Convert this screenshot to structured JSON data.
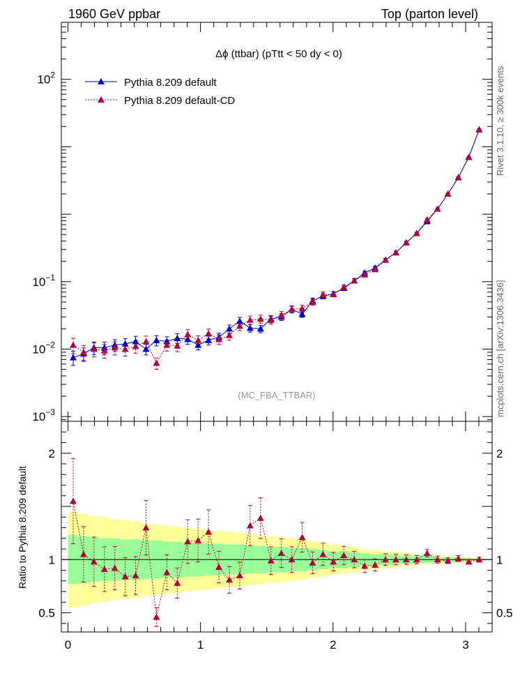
{
  "header": {
    "left": "1960 GeV ppbar",
    "right": "Top (parton level)"
  },
  "side_labels": {
    "rivet": "Rivet 3.1.10, ≥ 300k events",
    "mcplots": "mcplots.cern.ch [arXiv:1306.3436]"
  },
  "main_title": "Δϕ (ttbar) (pTtt < 50 dy < 0)",
  "analysis_tag": "(MC_FBA_TTBAR)",
  "ratio_ylabel": "Ratio to Pythia 8.209 default",
  "colors": {
    "default": "#0000cc",
    "cd": "#b0003c",
    "band_inner": "#99ff99",
    "band_outer": "#ffff99"
  },
  "chart_data": {
    "type": "line",
    "xlim": [
      -0.05,
      3.2
    ],
    "main_ylim": [
      0.00085,
      700
    ],
    "main_yscale": "log",
    "ratio_ylim": [
      0.32,
      2.3
    ],
    "x_ticks": [
      "0",
      "1",
      "2",
      "3"
    ],
    "main_y_ticks": [
      "10^-3",
      "10^-2",
      "10^-1",
      "1",
      "10",
      "10^2"
    ],
    "ratio_y_ticks": [
      "0.5",
      "1",
      "2"
    ],
    "legend": "top-left",
    "x": [
      0.0393,
      0.1178,
      0.1963,
      0.2749,
      0.3534,
      0.432,
      0.5105,
      0.589,
      0.6676,
      0.7461,
      0.8247,
      0.9032,
      0.9817,
      1.0603,
      1.1388,
      1.2174,
      1.2959,
      1.3744,
      1.453,
      1.5315,
      1.6101,
      1.6886,
      1.7671,
      1.8457,
      1.9242,
      2.0028,
      2.0813,
      2.1598,
      2.2384,
      2.3169,
      2.3955,
      2.474,
      2.5525,
      2.6311,
      2.7096,
      2.7882,
      2.8667,
      2.9452,
      3.0238,
      3.1023
    ],
    "series": [
      {
        "name": "Pythia 8.209 default",
        "marker": "triangle",
        "values": [
          0.0075,
          0.0085,
          0.0105,
          0.0105,
          0.0115,
          0.012,
          0.013,
          0.01,
          0.0135,
          0.013,
          0.0145,
          0.014,
          0.0115,
          0.0135,
          0.015,
          0.02,
          0.026,
          0.0205,
          0.02,
          0.028,
          0.03,
          0.039,
          0.033,
          0.052,
          0.061,
          0.066,
          0.08,
          0.103,
          0.135,
          0.16,
          0.21,
          0.27,
          0.38,
          0.52,
          0.78,
          1.2,
          2.0,
          3.5,
          7.0,
          18.0
        ]
      },
      {
        "name": "Pythia 8.209 default-CD",
        "marker": "triangle",
        "values": [
          0.0115,
          0.009,
          0.01,
          0.0095,
          0.0105,
          0.01,
          0.011,
          0.013,
          0.0062,
          0.0115,
          0.0112,
          0.0165,
          0.0135,
          0.017,
          0.014,
          0.016,
          0.022,
          0.027,
          0.028,
          0.027,
          0.032,
          0.039,
          0.04,
          0.05,
          0.064,
          0.065,
          0.083,
          0.103,
          0.127,
          0.152,
          0.21,
          0.27,
          0.38,
          0.52,
          0.83,
          1.2,
          2.0,
          3.52,
          7.0,
          18.0
        ]
      }
    ],
    "ratio_values": [
      1.55,
      1.05,
      0.98,
      0.91,
      0.92,
      0.84,
      0.85,
      1.3,
      0.46,
      0.88,
      0.78,
      1.17,
      1.18,
      1.26,
      0.93,
      0.81,
      0.85,
      1.32,
      1.39,
      0.99,
      1.06,
      1.0,
      1.21,
      0.97,
      1.05,
      0.98,
      1.04,
      1.0,
      0.94,
      0.95,
      1.0,
      1.0,
      1.0,
      1.0,
      1.06,
      1.0,
      0.99,
      1.01,
      0.98,
      1.0
    ],
    "band_inner": [
      0.23,
      0.22,
      0.21,
      0.2,
      0.2,
      0.19,
      0.19,
      0.18,
      0.18,
      0.17,
      0.17,
      0.16,
      0.16,
      0.15,
      0.15,
      0.14,
      0.14,
      0.13,
      0.13,
      0.12,
      0.12,
      0.11,
      0.11,
      0.1,
      0.09,
      0.08,
      0.08,
      0.07,
      0.06,
      0.05,
      0.05,
      0.04,
      0.04,
      0.03,
      0.03,
      0.02,
      0.02,
      0.02,
      0.01,
      0.01
    ],
    "band_outer": [
      0.45,
      0.43,
      0.41,
      0.4,
      0.38,
      0.37,
      0.36,
      0.34,
      0.33,
      0.32,
      0.31,
      0.3,
      0.29,
      0.28,
      0.27,
      0.26,
      0.25,
      0.24,
      0.23,
      0.22,
      0.21,
      0.2,
      0.19,
      0.17,
      0.16,
      0.14,
      0.13,
      0.12,
      0.1,
      0.09,
      0.08,
      0.07,
      0.06,
      0.05,
      0.04,
      0.04,
      0.03,
      0.03,
      0.02,
      0.02
    ]
  }
}
